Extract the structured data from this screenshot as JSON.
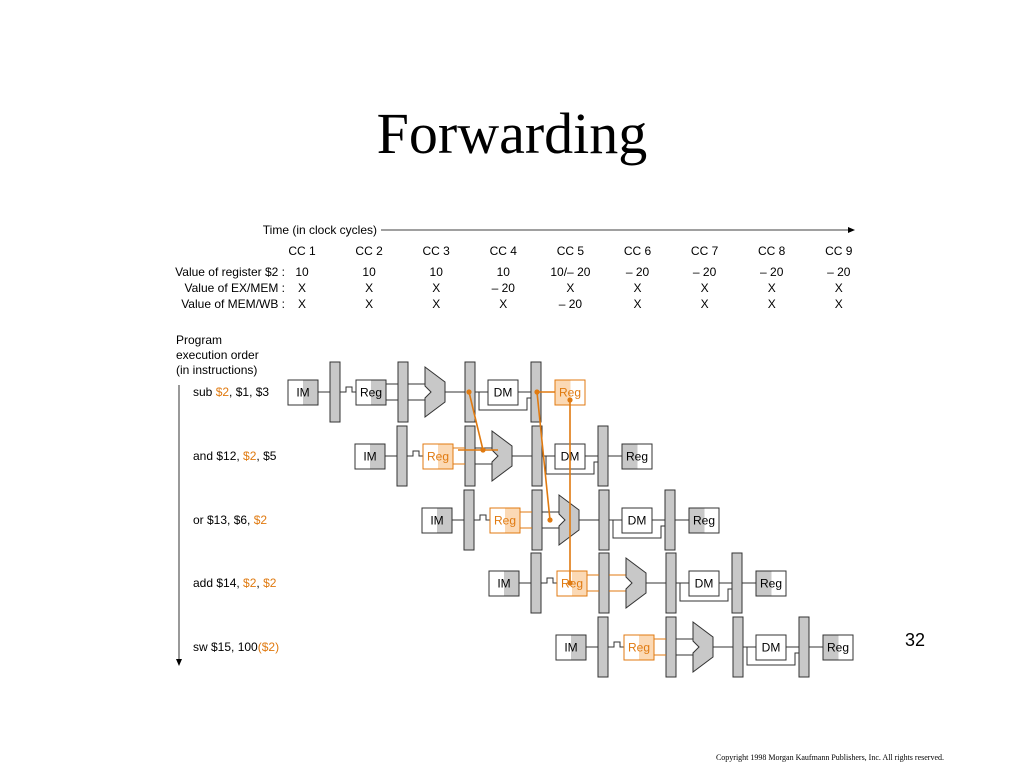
{
  "title": "Forwarding",
  "time_label": "Time (in clock cycles)",
  "clock_cycles": [
    "CC 1",
    "CC 2",
    "CC 3",
    "CC 4",
    "CC 5",
    "CC 6",
    "CC 7",
    "CC 8",
    "CC 9"
  ],
  "value_rows": [
    {
      "label": "Value of register $2 :",
      "values": [
        "10",
        "10",
        "10",
        "10",
        "10/– 20",
        "– 20",
        "– 20",
        "– 20",
        "– 20"
      ]
    },
    {
      "label": "Value of EX/MEM :",
      "values": [
        "X",
        "X",
        "X",
        "– 20",
        "X",
        "X",
        "X",
        "X",
        "X"
      ]
    },
    {
      "label": "Value of MEM/WB :",
      "values": [
        "X",
        "X",
        "X",
        "X",
        "– 20",
        "X",
        "X",
        "X",
        "X"
      ]
    }
  ],
  "order_label": [
    "Program",
    "execution order",
    "(in instructions)"
  ],
  "instructions": [
    [
      {
        "t": "sub "
      },
      {
        "t": "$2",
        "hl": true
      },
      {
        "t": ", $1, $3"
      }
    ],
    [
      {
        "t": "and $12, "
      },
      {
        "t": "$2",
        "hl": true
      },
      {
        "t": ", $5"
      }
    ],
    [
      {
        "t": "or $13, $6, "
      },
      {
        "t": "$2",
        "hl": true
      }
    ],
    [
      {
        "t": "add $14, "
      },
      {
        "t": "$2",
        "hl": true
      },
      {
        "t": ", "
      },
      {
        "t": "$2",
        "hl": true
      }
    ],
    [
      {
        "t": "sw $15, 100"
      },
      {
        "t": "($2)",
        "hl": true
      }
    ]
  ],
  "stage_labels": {
    "im": "IM",
    "reg": "Reg",
    "dm": "DM"
  },
  "page_number": "32",
  "copyright": "Copyright  1998 Morgan Kaufmann Publishers, Inc. All rights reserved.",
  "colors": {
    "highlight": "#e07a10",
    "highlight_fill": "#fbd9b5",
    "gray": "#c8c8c8",
    "stroke": "#333333"
  }
}
